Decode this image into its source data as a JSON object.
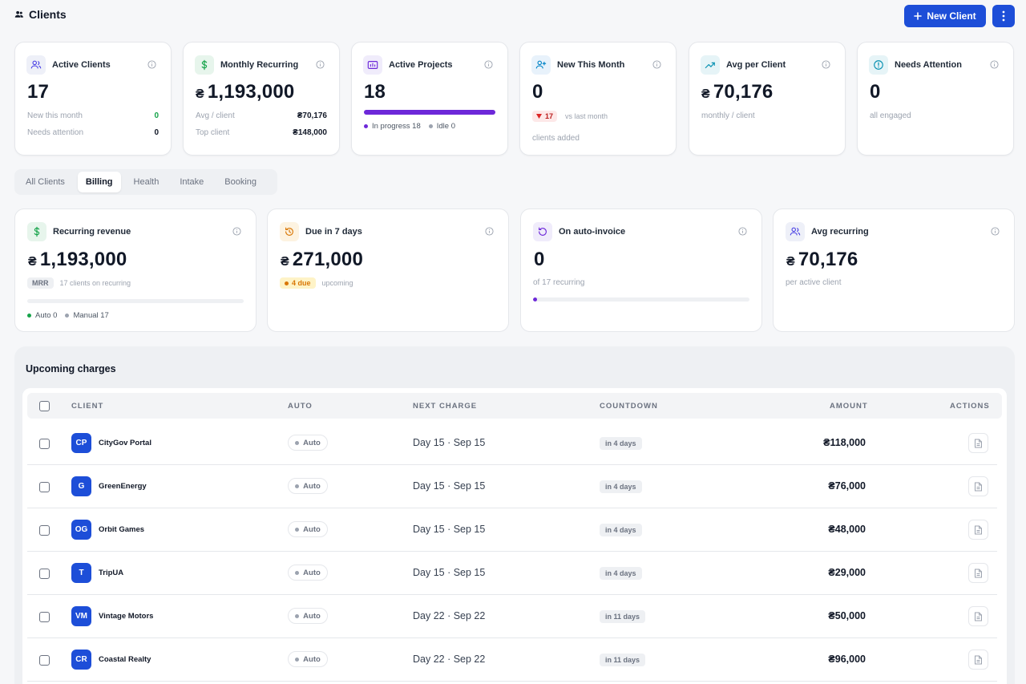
{
  "header": {
    "title": "Clients",
    "new_button": "New Client"
  },
  "currency": "₴",
  "kpis": [
    {
      "title": "Active Clients",
      "value": "17",
      "rows": [
        {
          "label": "New this month",
          "value": "0"
        },
        {
          "label": "Needs attention",
          "value": "0"
        }
      ]
    },
    {
      "title": "Monthly Recurring",
      "value": "1,193,000",
      "rows": [
        {
          "label": "Avg / client",
          "value": "₴70,176"
        },
        {
          "label": "Top client",
          "value": "₴148,000"
        }
      ]
    },
    {
      "title": "Active Projects",
      "value": "18",
      "progress": 1.0,
      "legend": [
        {
          "label": "In progress 18"
        },
        {
          "label": "Idle 0"
        }
      ]
    },
    {
      "title": "New This Month",
      "value": "0",
      "change": "17",
      "change_note": "vs last month",
      "note": "clients added"
    },
    {
      "title": "Avg per Client",
      "value": "70,176",
      "note": "monthly / client"
    },
    {
      "title": "Needs Attention",
      "value": "0",
      "note": "all engaged"
    }
  ],
  "tabs": [
    "All Clients",
    "Billing",
    "Health",
    "Intake",
    "Booking"
  ],
  "active_tab": "Billing",
  "billing": [
    {
      "title": "Recurring revenue",
      "value": "1,193,000",
      "chip": "MRR",
      "chip_note": "17 clients on recurring",
      "progress": 0.0,
      "legend": [
        {
          "label": "Auto 0"
        },
        {
          "label": "Manual 17"
        }
      ]
    },
    {
      "title": "Due in 7 days",
      "value": "271,000",
      "chip": "4 due",
      "chip_note": "upcoming"
    },
    {
      "title": "On auto-invoice",
      "value": "0",
      "note": "of 17 recurring",
      "progress": 0.0
    },
    {
      "title": "Avg recurring",
      "value": "70,176",
      "note": "per active client"
    }
  ],
  "upcoming": {
    "title": "Upcoming charges",
    "columns": [
      "CLIENT",
      "AUTO",
      "NEXT CHARGE",
      "COUNTDOWN",
      "AMOUNT",
      "ACTIONS"
    ],
    "rows": [
      {
        "initials": "CP",
        "client": "CityGov Portal",
        "auto": "Auto",
        "next": "Day 15 · Sep 15",
        "countdown": "in 4 days",
        "amount": "₴118,000"
      },
      {
        "initials": "G",
        "client": "GreenEnergy",
        "auto": "Auto",
        "next": "Day 15 · Sep 15",
        "countdown": "in 4 days",
        "amount": "₴76,000"
      },
      {
        "initials": "OG",
        "client": "Orbit Games",
        "auto": "Auto",
        "next": "Day 15 · Sep 15",
        "countdown": "in 4 days",
        "amount": "₴48,000"
      },
      {
        "initials": "T",
        "client": "TripUA",
        "auto": "Auto",
        "next": "Day 15 · Sep 15",
        "countdown": "in 4 days",
        "amount": "₴29,000"
      },
      {
        "initials": "VM",
        "client": "Vintage Motors",
        "auto": "Auto",
        "next": "Day 22 · Sep 22",
        "countdown": "in 11 days",
        "amount": "₴50,000"
      },
      {
        "initials": "CR",
        "client": "Coastal Realty",
        "auto": "Auto",
        "next": "Day 22 · Sep 22",
        "countdown": "in 11 days",
        "amount": "₴96,000"
      }
    ]
  },
  "colors": {
    "primary": "#1d4ed8",
    "purple": "#6d28d9",
    "green": "#16a34a",
    "red": "#b91c1c",
    "amber": "#d97706"
  }
}
